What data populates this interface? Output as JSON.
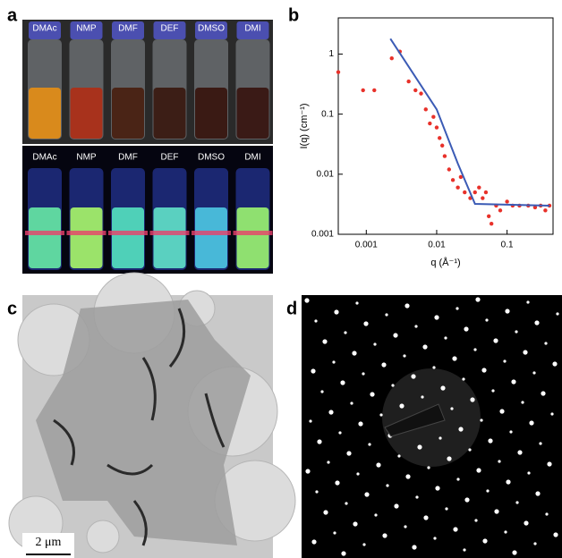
{
  "panels": {
    "a": "a",
    "b": "b",
    "c": "c",
    "d": "d"
  },
  "vials_top": [
    "DMAc",
    "NMP",
    "DMF",
    "DEF",
    "DMSO",
    "DMI"
  ],
  "vials_bottom": [
    "DMAc",
    "NMP",
    "DMF",
    "DEF",
    "DMSO",
    "DMI"
  ],
  "scale_bar": "2 μm",
  "chart_data": {
    "type": "scatter",
    "xlabel": "q (Å⁻¹)",
    "ylabel": "I(q) (cm⁻¹)",
    "xscale": "log",
    "yscale": "log",
    "xlim": [
      0.0004,
      0.45
    ],
    "ylim": [
      0.001,
      4
    ],
    "xticks": [
      0.001,
      0.01,
      0.1
    ],
    "yticks": [
      0.001,
      0.01,
      0.1,
      1
    ],
    "series": [
      {
        "type": "scatter",
        "color": "#e8312a",
        "x": [
          0.0004,
          0.0009,
          0.0013,
          0.0023,
          0.003,
          0.004,
          0.005,
          0.006,
          0.007,
          0.008,
          0.009,
          0.01,
          0.011,
          0.012,
          0.013,
          0.015,
          0.017,
          0.02,
          0.022,
          0.025,
          0.03,
          0.035,
          0.04,
          0.045,
          0.05,
          0.055,
          0.06,
          0.07,
          0.08,
          0.1,
          0.12,
          0.15,
          0.2,
          0.25,
          0.3,
          0.35,
          0.4
        ],
        "values": [
          0.5,
          0.25,
          0.25,
          0.85,
          1.1,
          0.35,
          0.25,
          0.22,
          0.12,
          0.07,
          0.09,
          0.06,
          0.04,
          0.03,
          0.02,
          0.012,
          0.008,
          0.006,
          0.009,
          0.005,
          0.004,
          0.005,
          0.006,
          0.004,
          0.005,
          0.002,
          0.0015,
          0.003,
          0.0025,
          0.0035,
          0.003,
          0.003,
          0.003,
          0.0028,
          0.003,
          0.0025,
          0.003
        ]
      },
      {
        "type": "line",
        "color": "#3b5bb5",
        "x": [
          0.0022,
          0.01,
          0.02,
          0.035,
          0.4
        ],
        "values": [
          1.8,
          0.12,
          0.015,
          0.0032,
          0.003
        ]
      }
    ]
  }
}
